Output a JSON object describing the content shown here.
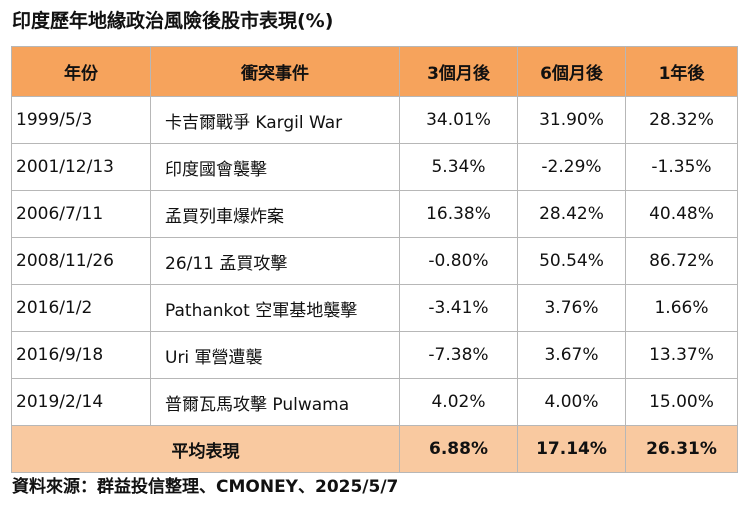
{
  "title": "印度歷年地緣政治風險後股市表現(%)",
  "table": {
    "headers": [
      "年份",
      "衝突事件",
      "3個月後",
      "6個月後",
      "1年後"
    ],
    "rows": [
      {
        "date": "1999/5/3",
        "event": "卡吉爾戰爭 Kargil War",
        "m3": "34.01%",
        "m6": "31.90%",
        "y1": "28.32%"
      },
      {
        "date": "2001/12/13",
        "event": "印度國會襲擊",
        "m3": "5.34%",
        "m6": "-2.29%",
        "y1": "-1.35%"
      },
      {
        "date": "2006/7/11",
        "event": "孟買列車爆炸案",
        "m3": "16.38%",
        "m6": "28.42%",
        "y1": "40.48%"
      },
      {
        "date": "2008/11/26",
        "event": "26/11 孟買攻擊",
        "m3": "-0.80%",
        "m6": "50.54%",
        "y1": "86.72%"
      },
      {
        "date": "2016/1/2",
        "event": "Pathankot 空軍基地襲擊",
        "m3": "-3.41%",
        "m6": "3.76%",
        "y1": "1.66%"
      },
      {
        "date": "2016/9/18",
        "event": "Uri 軍營遭襲",
        "m3": "-7.38%",
        "m6": "3.67%",
        "y1": "13.37%"
      },
      {
        "date": "2019/2/14",
        "event": "普爾瓦馬攻擊 Pulwama",
        "m3": "4.02%",
        "m6": "4.00%",
        "y1": "15.00%"
      }
    ],
    "average": {
      "label": "平均表現",
      "m3": "6.88%",
      "m6": "17.14%",
      "y1": "26.31%"
    }
  },
  "source": "資料來源：群益投信整理、CMONEY、2025/5/7",
  "colors": {
    "header_bg": "#f6a35c",
    "average_bg": "#f9c9a0",
    "border": "#b7b7b7"
  }
}
